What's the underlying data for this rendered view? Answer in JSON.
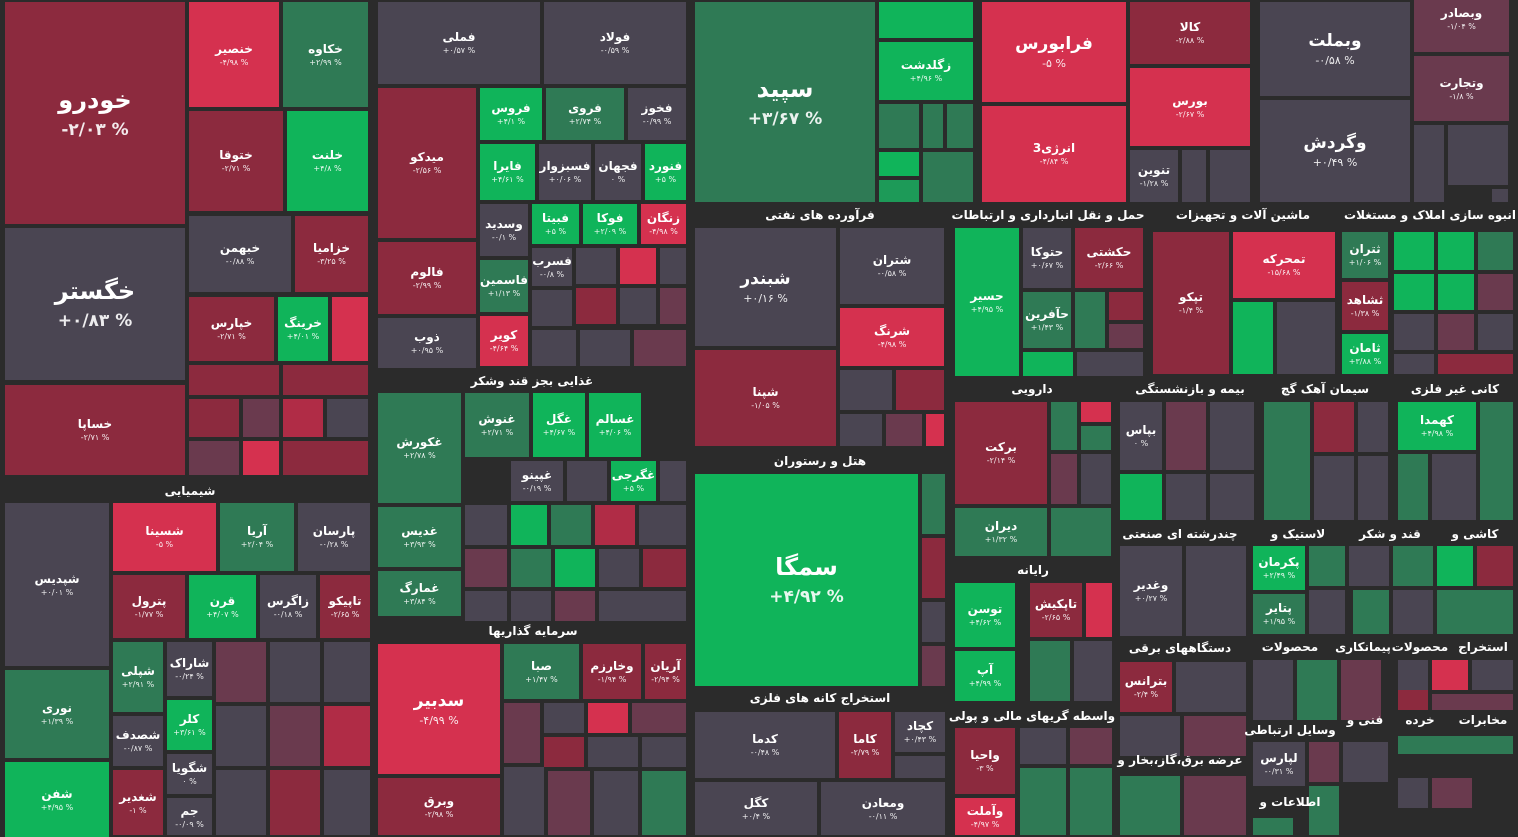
{
  "tiles": [
    {
      "name": "خودرو",
      "change": "-۲/۰۳ %"
    },
    {
      "name": "خگستر",
      "change": "+۰/۸۳ %"
    },
    {
      "name": "خساپا",
      "change": "-۲/۷۱ %"
    },
    {
      "name": "خنصیر",
      "change": "-۴/۹۸ %"
    },
    {
      "name": "خکاوه",
      "change": "+۲/۹۹ %"
    },
    {
      "name": "ختوقا",
      "change": "-۲/۷۱ %"
    },
    {
      "name": "خلنت",
      "change": "+۴/۸ %"
    },
    {
      "name": "خبهمن",
      "change": "-۰/۸۸ %"
    },
    {
      "name": "خزامیا",
      "change": "-۳/۲۵ %"
    },
    {
      "name": "خپارس",
      "change": "-۲/۷۱ %"
    },
    {
      "name": "خرینگ",
      "change": "+۴/۰۱ %"
    },
    {
      "name": "شپدیس",
      "change": "+۰/۰۱ %"
    },
    {
      "name": "نوری",
      "change": "+۱/۳۹ %"
    },
    {
      "name": "شفن",
      "change": "+۴/۹۵ %"
    },
    {
      "name": "شسینا",
      "change": "-۵ %"
    },
    {
      "name": "آریا",
      "change": "+۲/۰۴ %"
    },
    {
      "name": "پارسان",
      "change": "-۰/۲۸ %"
    },
    {
      "name": "پترول",
      "change": "-۱/۷۷ %"
    },
    {
      "name": "قرن",
      "change": "+۴/۰۷ %"
    },
    {
      "name": "زاگرس",
      "change": "-۰/۱۸ %"
    },
    {
      "name": "تاپیکو",
      "change": "-۲/۶۵ %"
    },
    {
      "name": "شپلی",
      "change": "+۲/۹۱ %"
    },
    {
      "name": "شاراک",
      "change": "-۰/۲۴ %"
    },
    {
      "name": "شصدف",
      "change": "-۰/۸۷ %"
    },
    {
      "name": "کلر",
      "change": "+۳/۶۱ %"
    },
    {
      "name": "شگویا",
      "change": "۰ %"
    },
    {
      "name": "شغدیر",
      "change": "-۱ %"
    },
    {
      "name": "جم",
      "change": "-۰/۰۹ %"
    },
    {
      "name": "فملی",
      "change": "+۰/۵۷ %"
    },
    {
      "name": "فولاد",
      "change": "-۰/۵۹ %"
    },
    {
      "name": "میدکو",
      "change": "-۲/۵۶ %"
    },
    {
      "name": "فالوم",
      "change": "-۲/۹۹ %"
    },
    {
      "name": "ذوب",
      "change": "+۰/۹۵ %"
    },
    {
      "name": "فروس",
      "change": "+۴/۱ %"
    },
    {
      "name": "فروی",
      "change": "+۲/۷۴ %"
    },
    {
      "name": "فخوز",
      "change": "-۰/۹۹ %"
    },
    {
      "name": "فایرا",
      "change": "+۴/۶۱ %"
    },
    {
      "name": "فسبزوار",
      "change": "+۰/۰۶ %"
    },
    {
      "name": "فجهان",
      "change": "۰ %"
    },
    {
      "name": "فنورد",
      "change": "+۵ %"
    },
    {
      "name": "وسدید",
      "change": "-۰/۱ %"
    },
    {
      "name": "فبیتا",
      "change": "+۵ %"
    },
    {
      "name": "فوکا",
      "change": "+۲/۰۹ %"
    },
    {
      "name": "زنگان",
      "change": "-۴/۹۸ %"
    },
    {
      "name": "فاسمین",
      "change": "+۱/۱۳ %"
    },
    {
      "name": "فسرب",
      "change": "-۰/۸ %"
    },
    {
      "name": "کویر",
      "change": "-۴/۶۴ %"
    },
    {
      "name": "غکورش",
      "change": "+۲/۷۸ %"
    },
    {
      "name": "غنوش",
      "change": "+۲/۷۱ %"
    },
    {
      "name": "غگل",
      "change": "+۴/۶۷ %"
    },
    {
      "name": "غسالم",
      "change": "+۴/۰۶ %"
    },
    {
      "name": "غپینو",
      "change": "-۰/۱۹ %"
    },
    {
      "name": "غگرجی",
      "change": "+۵ %"
    },
    {
      "name": "غدیس",
      "change": "+۳/۹۳ %"
    },
    {
      "name": "غمارگ",
      "change": "+۳/۸۴ %"
    },
    {
      "name": "سدبیر",
      "change": "-۴/۹۹ %"
    },
    {
      "name": "وبرق",
      "change": "-۲/۹۸ %"
    },
    {
      "name": "صبا",
      "change": "+۱/۴۷ %"
    },
    {
      "name": "وخارزم",
      "change": "-۱/۹۴ %"
    },
    {
      "name": "آریان",
      "change": "-۲/۹۴ %"
    },
    {
      "name": "سپید",
      "change": "+۳/۶۷ %"
    },
    {
      "name": "زگلدشت",
      "change": "+۴/۹۶ %"
    },
    {
      "name": "شبندر",
      "change": "+۰/۱۶ %"
    },
    {
      "name": "شتران",
      "change": "-۰/۵۸ %"
    },
    {
      "name": "شرنگ",
      "change": "-۴/۹۸ %"
    },
    {
      "name": "شپنا",
      "change": "-۱/۰۵ %"
    },
    {
      "name": "سمگا",
      "change": "+۴/۹۲ %"
    },
    {
      "name": "کدما",
      "change": "-۰/۴۸ %"
    },
    {
      "name": "کاما",
      "change": "-۲/۷۹ %"
    },
    {
      "name": "کچاد",
      "change": "+۰/۴۳ %"
    },
    {
      "name": "کگل",
      "change": "+۰/۴ %"
    },
    {
      "name": "ومعادن",
      "change": "-۰/۱۱ %"
    },
    {
      "name": "فرابورس",
      "change": "-۵ %"
    },
    {
      "name": "کالا",
      "change": "-۲/۸۸ %"
    },
    {
      "name": "بورس",
      "change": "-۲/۶۷ %"
    },
    {
      "name": "انرژی3",
      "change": "-۴/۸۴ %"
    },
    {
      "name": "تنوین",
      "change": "-۱/۲۸ %"
    },
    {
      "name": "حسیر",
      "change": "+۴/۹۵ %"
    },
    {
      "name": "حتوکا",
      "change": "+۰/۶۷ %"
    },
    {
      "name": "حکشتی",
      "change": "-۲/۶۶ %"
    },
    {
      "name": "حآفرین",
      "change": "+۱/۴۳ %"
    },
    {
      "name": "تپکو",
      "change": "-۱/۴ %"
    },
    {
      "name": "تمحرکه",
      "change": "-۱۵/۶۸ %"
    },
    {
      "name": "ثتران",
      "change": "+۱/۰۶ %"
    },
    {
      "name": "ثشاهد",
      "change": "-۱/۳۸ %"
    },
    {
      "name": "ثامان",
      "change": "+۳/۸۸ %"
    },
    {
      "name": "وبملت",
      "change": "-۰/۵۸ %"
    },
    {
      "name": "وگردش",
      "change": "+۰/۴۹ %"
    },
    {
      "name": "وبصادر",
      "change": "-۱/۰۴ %"
    },
    {
      "name": "وتجارت",
      "change": "-۱/۸ %"
    },
    {
      "name": "برکت",
      "change": "-۲/۱۴ %"
    },
    {
      "name": "دیران",
      "change": "+۱/۳۲ %"
    },
    {
      "name": "بپاس",
      "change": "۰ %"
    },
    {
      "name": "کهمدا",
      "change": "+۴/۹۸ %"
    },
    {
      "name": "توسن",
      "change": "+۴/۶۲ %"
    },
    {
      "name": "تاپکیش",
      "change": "-۲/۶۵ %"
    },
    {
      "name": "آپ",
      "change": "+۴/۹۹ %"
    },
    {
      "name": "واحیا",
      "change": "-۳ %"
    },
    {
      "name": "وآملت",
      "change": "-۴/۹۷ %"
    },
    {
      "name": "وغدیر",
      "change": "+۰/۲۷ %"
    },
    {
      "name": "بترانس",
      "change": "-۲/۴ %"
    },
    {
      "name": "پکرمان",
      "change": "+۲/۴۹ %"
    },
    {
      "name": "پتایر",
      "change": "+۱/۹۵ %"
    },
    {
      "name": "لپارس",
      "change": "-۰/۳۱ %"
    }
  ],
  "sectors": [
    "شیمیایی",
    "غذایی بجز قند وشکر",
    "سرمایه گذاریها",
    "فرآورده های نفتی",
    "هتل و رستوران",
    "استخراج کانه های فلزی",
    "حمل و نقل انبارداری و ارتباطات",
    "ماشین آلات و تجهیزات",
    "انبوه سازی املاک و مستغلات",
    "دارویی",
    "بیمه و بازنشستگی",
    "سیمان آهک گچ",
    "کانی غیر فلزی",
    "رایانه",
    "چندرشته ای صنعتی",
    "لاستیک و",
    "قند و شکر",
    "کاشی و",
    "واسطه گریهای مالی و پولی",
    "عرضه برق،گاز،بخار و",
    "دستگاههای برقی",
    "محصولات",
    "وسایل ارتباطی",
    "اطلاعات و",
    "استخراج",
    "محصولات",
    "پیمانکاری",
    "مخابرات",
    "خرده",
    "فنی و"
  ]
}
